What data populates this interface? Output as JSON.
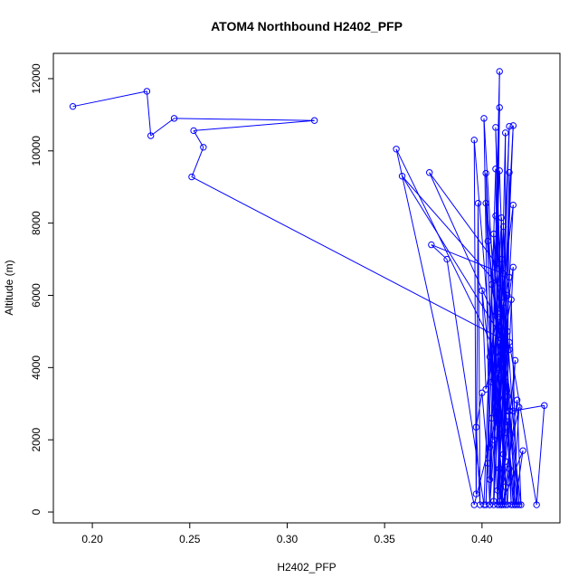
{
  "chart_data": {
    "type": "line",
    "title": "ATOM4 Northbound H2402_PFP",
    "xlabel": "H2402_PFP",
    "ylabel": "Altitude (m)",
    "xlim": [
      0.18,
      0.44
    ],
    "ylim": [
      -300,
      12700
    ],
    "x_ticks": [
      0.2,
      0.25,
      0.3,
      0.35,
      0.4
    ],
    "x_tick_labels": [
      "0.20",
      "0.25",
      "0.30",
      "0.35",
      "0.40"
    ],
    "y_ticks": [
      0,
      2000,
      4000,
      6000,
      8000,
      10000,
      12000
    ],
    "y_tick_labels": [
      "0",
      "2000",
      "4000",
      "6000",
      "8000",
      "10000",
      "12000"
    ],
    "grid": false,
    "line_color": "#0000ff",
    "markers": "open-circle",
    "series": [
      {
        "name": "",
        "points": [
          [
            0.19,
            11230
          ],
          [
            0.228,
            11650
          ],
          [
            0.23,
            10420
          ],
          [
            0.242,
            10900
          ],
          [
            0.314,
            10840
          ],
          [
            0.252,
            10560
          ],
          [
            0.257,
            10100
          ],
          [
            0.251,
            9280
          ],
          [
            0.41,
            4800
          ],
          [
            0.404,
            200
          ],
          [
            0.409,
            12200
          ],
          [
            0.406,
            300
          ],
          [
            0.409,
            11200
          ],
          [
            0.404,
            900
          ],
          [
            0.401,
            10900
          ],
          [
            0.411,
            1600
          ],
          [
            0.407,
            10650
          ],
          [
            0.412,
            2200
          ],
          [
            0.412,
            10500
          ],
          [
            0.408,
            600
          ],
          [
            0.414,
            10680
          ],
          [
            0.406,
            200
          ],
          [
            0.416,
            10700
          ],
          [
            0.409,
            1200
          ],
          [
            0.407,
            9500
          ],
          [
            0.402,
            200
          ],
          [
            0.409,
            9450
          ],
          [
            0.413,
            2800
          ],
          [
            0.414,
            9400
          ],
          [
            0.41,
            200
          ],
          [
            0.402,
            9380
          ],
          [
            0.405,
            3600
          ],
          [
            0.416,
            8500
          ],
          [
            0.408,
            200
          ],
          [
            0.402,
            8550
          ],
          [
            0.412,
            4400
          ],
          [
            0.407,
            8200
          ],
          [
            0.415,
            200
          ],
          [
            0.411,
            7900
          ],
          [
            0.404,
            1800
          ],
          [
            0.41,
            8150
          ],
          [
            0.409,
            200
          ],
          [
            0.406,
            7700
          ],
          [
            0.413,
            3200
          ],
          [
            0.403,
            7500
          ],
          [
            0.417,
            200
          ],
          [
            0.41,
            7000
          ],
          [
            0.405,
            2600
          ],
          [
            0.416,
            6780
          ],
          [
            0.41,
            200
          ],
          [
            0.414,
            6500
          ],
          [
            0.402,
            3400
          ],
          [
            0.4,
            6130
          ],
          [
            0.412,
            200
          ],
          [
            0.411,
            5800
          ],
          [
            0.408,
            4000
          ],
          [
            0.415,
            5880
          ],
          [
            0.418,
            200
          ],
          [
            0.409,
            5400
          ],
          [
            0.406,
            2000
          ],
          [
            0.413,
            5000
          ],
          [
            0.419,
            200
          ],
          [
            0.41,
            4600
          ],
          [
            0.412,
            1400
          ],
          [
            0.417,
            4200
          ],
          [
            0.413,
            200
          ],
          [
            0.408,
            3800
          ],
          [
            0.412,
            700
          ],
          [
            0.418,
            3100
          ],
          [
            0.42,
            200
          ],
          [
            0.414,
            2800
          ],
          [
            0.409,
            300
          ],
          [
            0.419,
            2900
          ],
          [
            0.416,
            200
          ],
          [
            0.413,
            2500
          ],
          [
            0.41,
            200
          ],
          [
            0.421,
            1700
          ],
          [
            0.417,
            200
          ],
          [
            0.414,
            1200
          ],
          [
            0.411,
            200
          ],
          [
            0.396,
            10300
          ],
          [
            0.397,
            500
          ],
          [
            0.398,
            8550
          ],
          [
            0.399,
            200
          ],
          [
            0.397,
            2350
          ],
          [
            0.4,
            3300
          ],
          [
            0.403,
            1350
          ],
          [
            0.404,
            200
          ],
          [
            0.408,
            5500
          ],
          [
            0.404,
            4300
          ],
          [
            0.409,
            2300
          ],
          [
            0.412,
            3600
          ],
          [
            0.396,
            200
          ],
          [
            0.356,
            10050
          ],
          [
            0.41,
            4100
          ],
          [
            0.413,
            6000
          ],
          [
            0.359,
            9300
          ],
          [
            0.414,
            4500
          ],
          [
            0.373,
            9400
          ],
          [
            0.411,
            6600
          ],
          [
            0.374,
            7400
          ],
          [
            0.382,
            7000
          ],
          [
            0.401,
            200
          ],
          [
            0.405,
            6300
          ],
          [
            0.416,
            2800
          ],
          [
            0.432,
            2950
          ],
          [
            0.428,
            200
          ],
          [
            0.414,
            4700
          ]
        ]
      }
    ]
  }
}
